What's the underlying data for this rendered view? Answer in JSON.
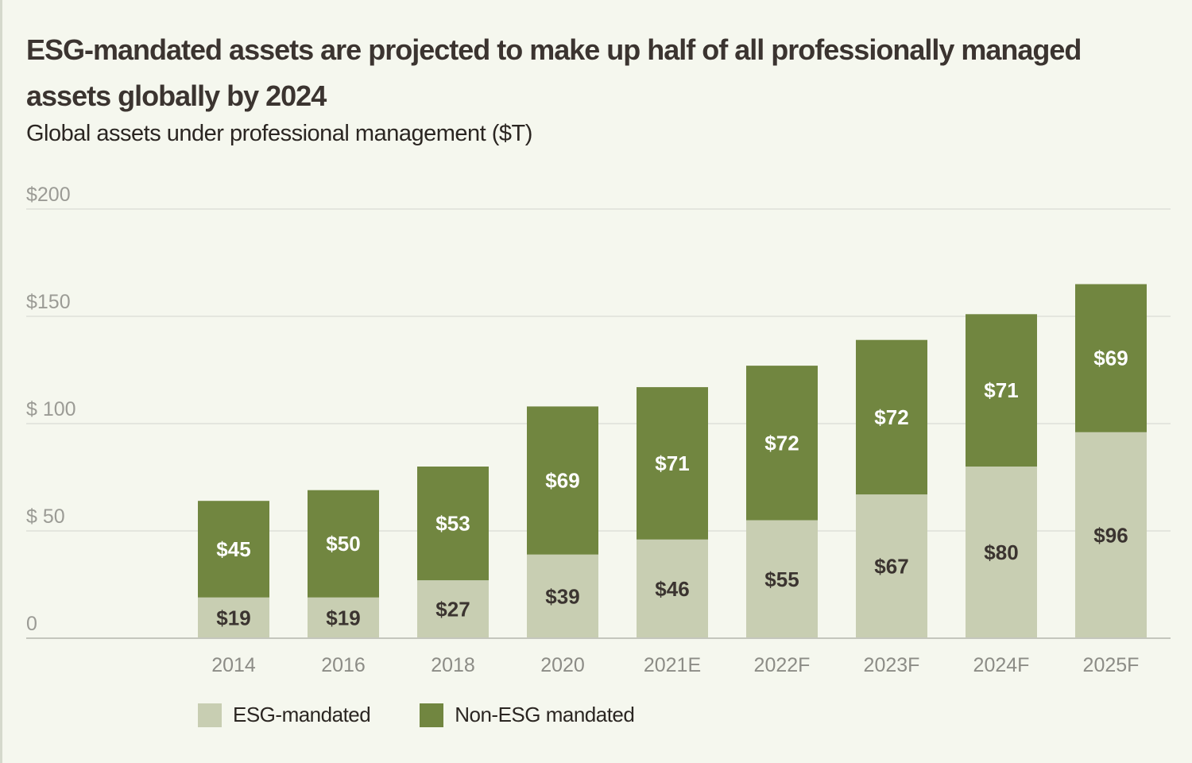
{
  "chart_data": {
    "type": "bar",
    "stacked": true,
    "title": "ESG-mandated assets are projected to make up half of all professionally managed assets globally by 2024",
    "subtitle": "Global assets under professional management ($T)",
    "categories": [
      "2014",
      "2016",
      "2018",
      "2020",
      "2021E",
      "2022F",
      "2023F",
      "2024F",
      "2025F"
    ],
    "series": [
      {
        "name": "ESG-mandated",
        "color": "#c8ceb2",
        "label_color": "#3b3430",
        "values": [
          19,
          19,
          27,
          39,
          46,
          55,
          67,
          80,
          96
        ],
        "labels": [
          "$19",
          "$19",
          "$27",
          "$39",
          "$46",
          "$55",
          "$67",
          "$80",
          "$96"
        ]
      },
      {
        "name": "Non-ESG mandated",
        "color": "#718640",
        "label_color": "#ffffff",
        "values": [
          45,
          50,
          53,
          69,
          71,
          72,
          72,
          71,
          69
        ],
        "labels": [
          "$45",
          "$50",
          "$53",
          "$69",
          "$71",
          "$72",
          "$72",
          "$71",
          "$69"
        ]
      }
    ],
    "ylim": [
      0,
      200
    ],
    "yticks": [
      {
        "value": 0,
        "label": "0"
      },
      {
        "value": 50,
        "label": "$ 50"
      },
      {
        "value": 100,
        "label": "$ 100"
      },
      {
        "value": 150,
        "label": "$150"
      },
      {
        "value": 200,
        "label": "$200"
      }
    ],
    "grid": true,
    "legend_position": "bottom-left"
  }
}
